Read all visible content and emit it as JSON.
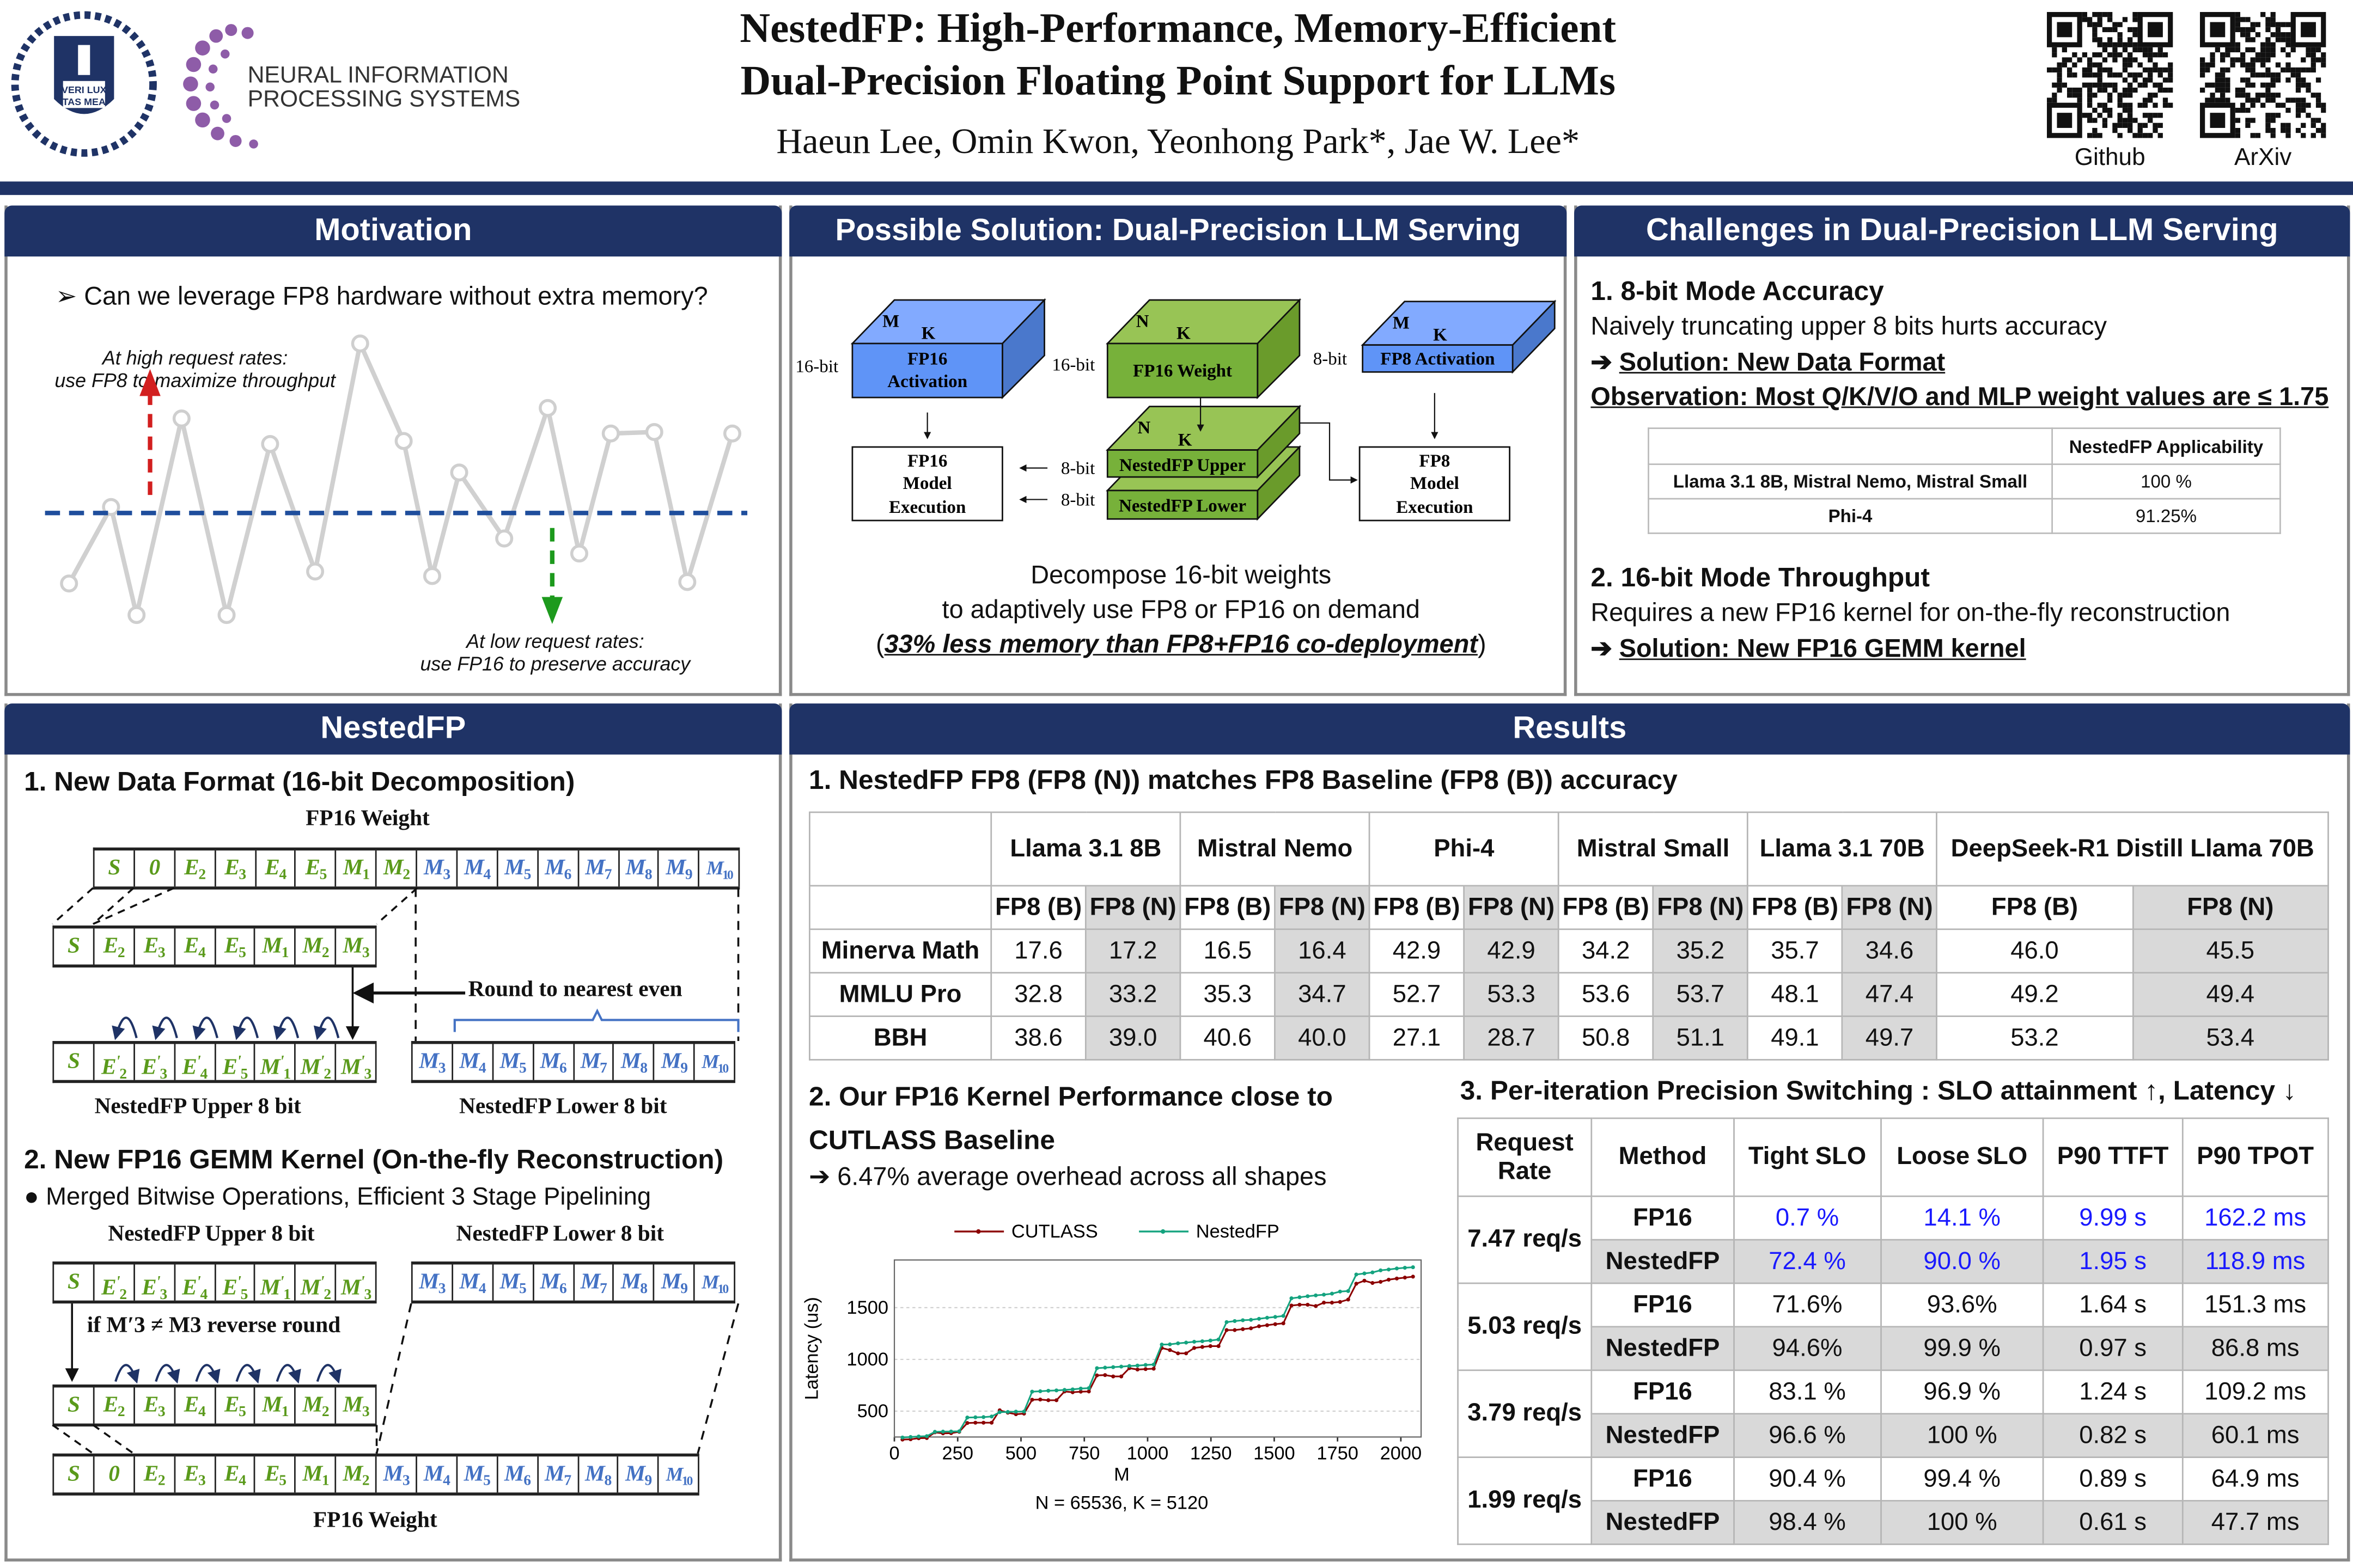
{
  "header": {
    "title_line1": "NestedFP: High-Performance, Memory-Efficient",
    "title_line2": "Dual-Precision Floating Point Support for LLMs",
    "authors": "Haeun Lee, Omin Kwon, Yeonhong Park*, Jae W. Lee*",
    "logo_univ_text": "VERI LUX TAS MEA",
    "logo_conf_line1": "NEURAL INFORMATION",
    "logo_conf_line2": "PROCESSING SYSTEMS",
    "qr_github_label": "Github",
    "qr_arxiv_label": "ArXiv",
    "navy": "#1f3366"
  },
  "motivation": {
    "title": "Motivation",
    "question": "➢ Can we leverage FP8 hardware without extra memory?",
    "high_line1": "At high request rates:",
    "high_line2": "use FP8 to maximize throughput",
    "low_line1": "At low request rates:",
    "low_line2": "use FP16 to preserve accuracy"
  },
  "solution": {
    "title": "Possible Solution: Dual-Precision LLM Serving",
    "fp16_act": [
      "FP16",
      "Activation"
    ],
    "fp16_weight": "FP16 Weight",
    "fp8_act": "FP8 Activation",
    "nested_upper": "NestedFP Upper",
    "nested_lower": "NestedFP Lower",
    "fp16_exec": [
      "FP16",
      "Model",
      "Execution"
    ],
    "fp8_exec": [
      "FP8",
      "Model",
      "Execution"
    ],
    "bits16": "16-bit",
    "bits8": "8-bit",
    "dim_m": "M",
    "dim_n": "N",
    "dim_k": "K",
    "desc_line1": "Decompose 16-bit weights",
    "desc_line2": "to adaptively use FP8 or FP16 on demand",
    "desc_line3_open": "(",
    "desc_line3_em": "33% less memory than FP8+FP16 co-deployment",
    "desc_line3_close": ")"
  },
  "challenges": {
    "title": "Challenges in Dual-Precision LLM Serving",
    "h1": "1. 8-bit Mode Accuracy",
    "p1": "Naively truncating upper 8 bits hurts accuracy",
    "s1_arrow": "➔",
    "s1": "Solution: New Data Format",
    "obs": "Observation: Most Q/K/V/O and MLP weight values are ≤ 1.75",
    "table": {
      "header": "NestedFP Applicability",
      "rows": [
        {
          "model": "Llama 3.1 8B, Mistral Nemo, Mistral Small",
          "value": "100 %"
        },
        {
          "model": "Phi-4",
          "value": "91.25%"
        }
      ]
    },
    "h2": "2. 16-bit Mode Throughput",
    "p2": "Requires a new FP16 kernel for on-the-fly reconstruction",
    "s2_arrow": "➔",
    "s2": "Solution: New FP16 GEMM kernel"
  },
  "nested": {
    "title": "NestedFP",
    "h1": "1. New Data Format (16-bit Decomposition)",
    "fp16_weight_label": "FP16 Weight",
    "round_label": "Round to nearest even",
    "upper_label": "NestedFP Upper 8 bit",
    "lower_label": "NestedFP Lower 8 bit",
    "h2": "2. New FP16 GEMM Kernel (On-the-fly Reconstruction)",
    "bullet": "●  Merged Bitwise Operations, Efficient 3 Stage Pipelining",
    "cond_label": "if M′3 ≠ M3 reverse round",
    "rows": {
      "fp16": {
        "cells": [
          "S",
          "0",
          "E2",
          "E3",
          "E4",
          "E5",
          "M1",
          "M2",
          "M3",
          "M4",
          "M5",
          "M6",
          "M7",
          "M8",
          "M9",
          "M10"
        ],
        "green_count": 8
      },
      "trunc": {
        "cells": [
          "S",
          "E2",
          "E3",
          "E4",
          "E5",
          "M1",
          "M2",
          "M3"
        ],
        "green_count": 8
      },
      "upper": {
        "cells": [
          "S",
          "E'2",
          "E'3",
          "E'4",
          "E'5",
          "M'1",
          "M'2",
          "M'3"
        ],
        "green_count": 8
      },
      "lower": {
        "cells": [
          "M3",
          "M4",
          "M5",
          "M6",
          "M7",
          "M8",
          "M9",
          "M10"
        ],
        "green_count": 0
      }
    }
  },
  "results": {
    "title": "Results",
    "h1": "1. NestedFP FP8 (FP8 (N)) matches FP8 Baseline (FP8 (B)) accuracy",
    "acc_table": {
      "models": [
        "Llama 3.1 8B",
        "Mistral Nemo",
        "Phi-4",
        "Mistral Small",
        "Llama 3.1 70B",
        "DeepSeek-R1 Distill Llama 70B"
      ],
      "sub": [
        "FP8 (B)",
        "FP8 (N)"
      ],
      "rows": [
        {
          "name": "Minerva Math",
          "values": [
            "17.6",
            "17.2",
            "16.5",
            "16.4",
            "42.9",
            "42.9",
            "34.2",
            "35.2",
            "35.7",
            "34.6",
            "46.0",
            "45.5"
          ]
        },
        {
          "name": "MMLU Pro",
          "values": [
            "32.8",
            "33.2",
            "35.3",
            "34.7",
            "52.7",
            "53.3",
            "53.6",
            "53.7",
            "48.1",
            "47.4",
            "49.2",
            "49.4"
          ]
        },
        {
          "name": "BBH",
          "values": [
            "38.6",
            "39.0",
            "40.6",
            "40.0",
            "27.1",
            "28.7",
            "50.8",
            "51.1",
            "49.1",
            "49.7",
            "53.2",
            "53.4"
          ]
        }
      ]
    },
    "h2_line1": "2. Our FP16 Kernel Performance close to",
    "h2_line2": "CUTLASS Baseline",
    "overhead": "➔ 6.47% average overhead across all shapes",
    "h3": "3. Per-iteration Precision Switching : SLO attainment ↑, Latency ↓",
    "slo_table": {
      "headers": [
        "Request Rate",
        "Method",
        "Tight SLO",
        "Loose SLO",
        "P90 TTFT",
        "P90 TPOT"
      ],
      "highlight_color": "#1a1aff",
      "groups": [
        {
          "rate": "7.47 req/s",
          "rows": [
            {
              "method": "FP16",
              "values": [
                "0.7 %",
                "14.1 %",
                "9.99 s",
                "162.2 ms"
              ]
            },
            {
              "method": "NestedFP",
              "values": [
                "72.4 %",
                "90.0 %",
                "1.95 s",
                "118.9 ms"
              ]
            }
          ]
        },
        {
          "rate": "5.03 req/s",
          "rows": [
            {
              "method": "FP16",
              "values": [
                "71.6%",
                "93.6%",
                "1.64 s",
                "151.3 ms"
              ]
            },
            {
              "method": "NestedFP",
              "values": [
                "94.6%",
                "99.9 %",
                "0.97 s",
                "86.8 ms"
              ]
            }
          ]
        },
        {
          "rate": "3.79 req/s",
          "rows": [
            {
              "method": "FP16",
              "values": [
                "83.1 %",
                "96.9 %",
                "1.24 s",
                "109.2 ms"
              ]
            },
            {
              "method": "NestedFP",
              "values": [
                "96.6 %",
                "100 %",
                "0.82 s",
                "60.1 ms"
              ]
            }
          ]
        },
        {
          "rate": "1.99 req/s",
          "rows": [
            {
              "method": "FP16",
              "values": [
                "90.4 %",
                "99.4 %",
                "0.89 s",
                "64.9 ms"
              ]
            },
            {
              "method": "NestedFP",
              "values": [
                "98.4 %",
                "100 %",
                "0.61 s",
                "47.7 ms"
              ]
            }
          ]
        }
      ]
    }
  },
  "chart_data": {
    "type": "line",
    "title": "",
    "xlabel": "M",
    "ylabel": "Latency (us)",
    "caption": "N = 65536, K = 5120",
    "xlim": [
      0,
      2080
    ],
    "ylim": [
      250,
      1960
    ],
    "xticks": [
      0,
      250,
      500,
      750,
      1000,
      1250,
      1500,
      1750,
      2000
    ],
    "yticks": [
      500,
      1000,
      1500
    ],
    "grid": "y-dashed",
    "legend": "top",
    "x": [
      32,
      64,
      96,
      128,
      160,
      192,
      224,
      256,
      288,
      320,
      352,
      384,
      416,
      448,
      480,
      512,
      544,
      576,
      608,
      640,
      672,
      704,
      736,
      768,
      800,
      832,
      864,
      896,
      928,
      960,
      992,
      1024,
      1056,
      1088,
      1120,
      1152,
      1184,
      1216,
      1248,
      1280,
      1312,
      1344,
      1376,
      1408,
      1440,
      1472,
      1504,
      1536,
      1568,
      1600,
      1632,
      1664,
      1696,
      1728,
      1760,
      1792,
      1824,
      1856,
      1888,
      1920,
      1952,
      1984,
      2016,
      2048
    ],
    "series": [
      {
        "name": "CUTLASS",
        "color": "#8b0000",
        "values": [
          225,
          228,
          238,
          240,
          295,
          285,
          287,
          300,
          385,
          388,
          388,
          388,
          508,
          485,
          470,
          476,
          610,
          612,
          605,
          605,
          690,
          682,
          688,
          690,
          845,
          848,
          835,
          835,
          915,
          902,
          906,
          910,
          1110,
          1090,
          1058,
          1058,
          1110,
          1120,
          1128,
          1128,
          1283,
          1283,
          1292,
          1300,
          1320,
          1330,
          1340,
          1348,
          1520,
          1528,
          1528,
          1515,
          1548,
          1548,
          1555,
          1578,
          1731,
          1760,
          1738,
          1749,
          1770,
          1781,
          1790,
          1799
        ]
      },
      {
        "name": "NestedFP",
        "color": "#14a37f",
        "values": [
          245,
          250,
          255,
          258,
          300,
          302,
          303,
          305,
          438,
          440,
          442,
          448,
          490,
          492,
          495,
          496,
          688,
          692,
          697,
          700,
          705,
          710,
          718,
          722,
          915,
          920,
          925,
          930,
          936,
          940,
          946,
          950,
          1143,
          1145,
          1155,
          1162,
          1170,
          1175,
          1182,
          1192,
          1360,
          1370,
          1378,
          1382,
          1392,
          1402,
          1410,
          1420,
          1590,
          1600,
          1610,
          1618,
          1625,
          1635,
          1655,
          1660,
          1820,
          1830,
          1840,
          1860,
          1868,
          1878,
          1885,
          1890
        ]
      }
    ]
  }
}
